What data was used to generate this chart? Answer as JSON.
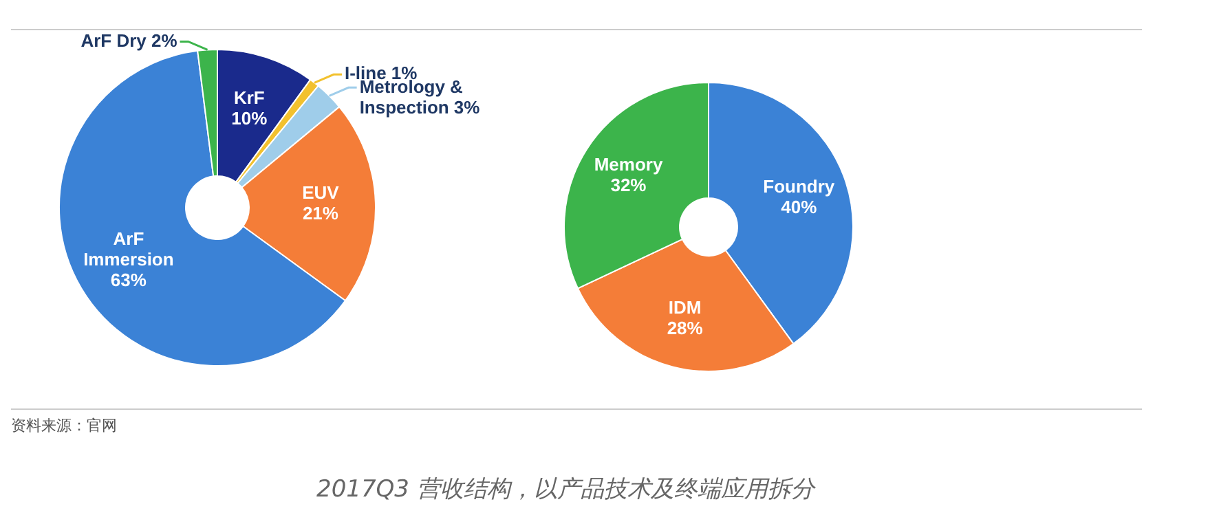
{
  "chart_data": [
    {
      "type": "donut",
      "categories": [
        "KrF",
        "I-line",
        "Metrology & Inspection",
        "EUV",
        "ArF Immersion",
        "ArF Dry"
      ],
      "values": [
        10,
        1,
        3,
        21,
        63,
        2
      ],
      "colors": [
        "#1a2a8c",
        "#f2c12e",
        "#9fcdea",
        "#f47d38",
        "#3b82d6",
        "#3cb44b"
      ],
      "value_labels": [
        "10%",
        "1%",
        "3%",
        "21%",
        "63%",
        "2%"
      ]
    },
    {
      "type": "donut",
      "categories": [
        "Foundry",
        "IDM",
        "Memory"
      ],
      "values": [
        40,
        28,
        32
      ],
      "colors": [
        "#3b82d6",
        "#f47d38",
        "#3cb44b"
      ],
      "value_labels": [
        "40%",
        "28%",
        "32%"
      ],
      "annotations": [
        "资料来源：官网",
        "2017Q3 营收结构，以产品技术及终端应用拆分"
      ]
    }
  ]
}
